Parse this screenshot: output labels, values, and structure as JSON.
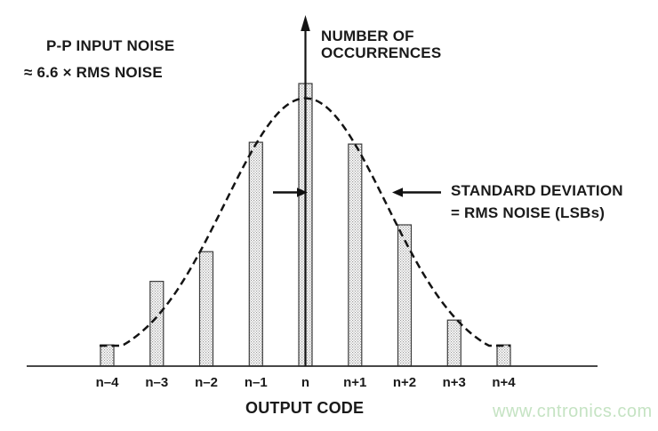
{
  "annotations": {
    "pp_noise_line1": "P-P INPUT NOISE",
    "pp_noise_line2": "≈ 6.6 × RMS NOISE",
    "ylabel_line1": "NUMBER OF",
    "ylabel_line2": "OCCURRENCES",
    "sd_line1": "STANDARD DEVIATION",
    "sd_line2": "= RMS NOISE (LSBs)"
  },
  "watermark": {
    "text": "www.cntronics.com",
    "color": "#c5e3c3"
  },
  "colors": {
    "ink": "#1a1a1a",
    "axis": "#2e2e2e",
    "bar_stroke": "#3d3d3d",
    "stipple_dot": "#9b9b9b",
    "watermark": "#c5e3c3"
  },
  "chart_data": {
    "type": "bar",
    "subtype": "grounded-input-noise-histogram-with-gaussian-envelope",
    "title": "",
    "xlabel": "OUTPUT CODE",
    "ylabel": "NUMBER OF OCCURRENCES",
    "categories": [
      "n–4",
      "n–3",
      "n–2",
      "n–1",
      "n",
      "n+1",
      "n+2",
      "n+3",
      "n+4"
    ],
    "values": [
      0.075,
      0.3,
      0.405,
      0.792,
      1.0,
      0.786,
      0.5,
      0.163,
      0.075
    ],
    "values_unit": "relative number of occurrences (peak bar = 1.0)",
    "ylim": [
      0,
      1.05
    ],
    "grid": false,
    "legend": false,
    "bar_fill": "stippled white",
    "envelope": {
      "shape": "gaussian",
      "style": "dashed",
      "sigma_lsbs": 1.63,
      "peak_relative": 0.948
    },
    "callouts": [
      "P-P INPUT NOISE ≈ 6.6 × RMS NOISE",
      "STANDARD DEVIATION = RMS NOISE (LSBs)"
    ]
  }
}
